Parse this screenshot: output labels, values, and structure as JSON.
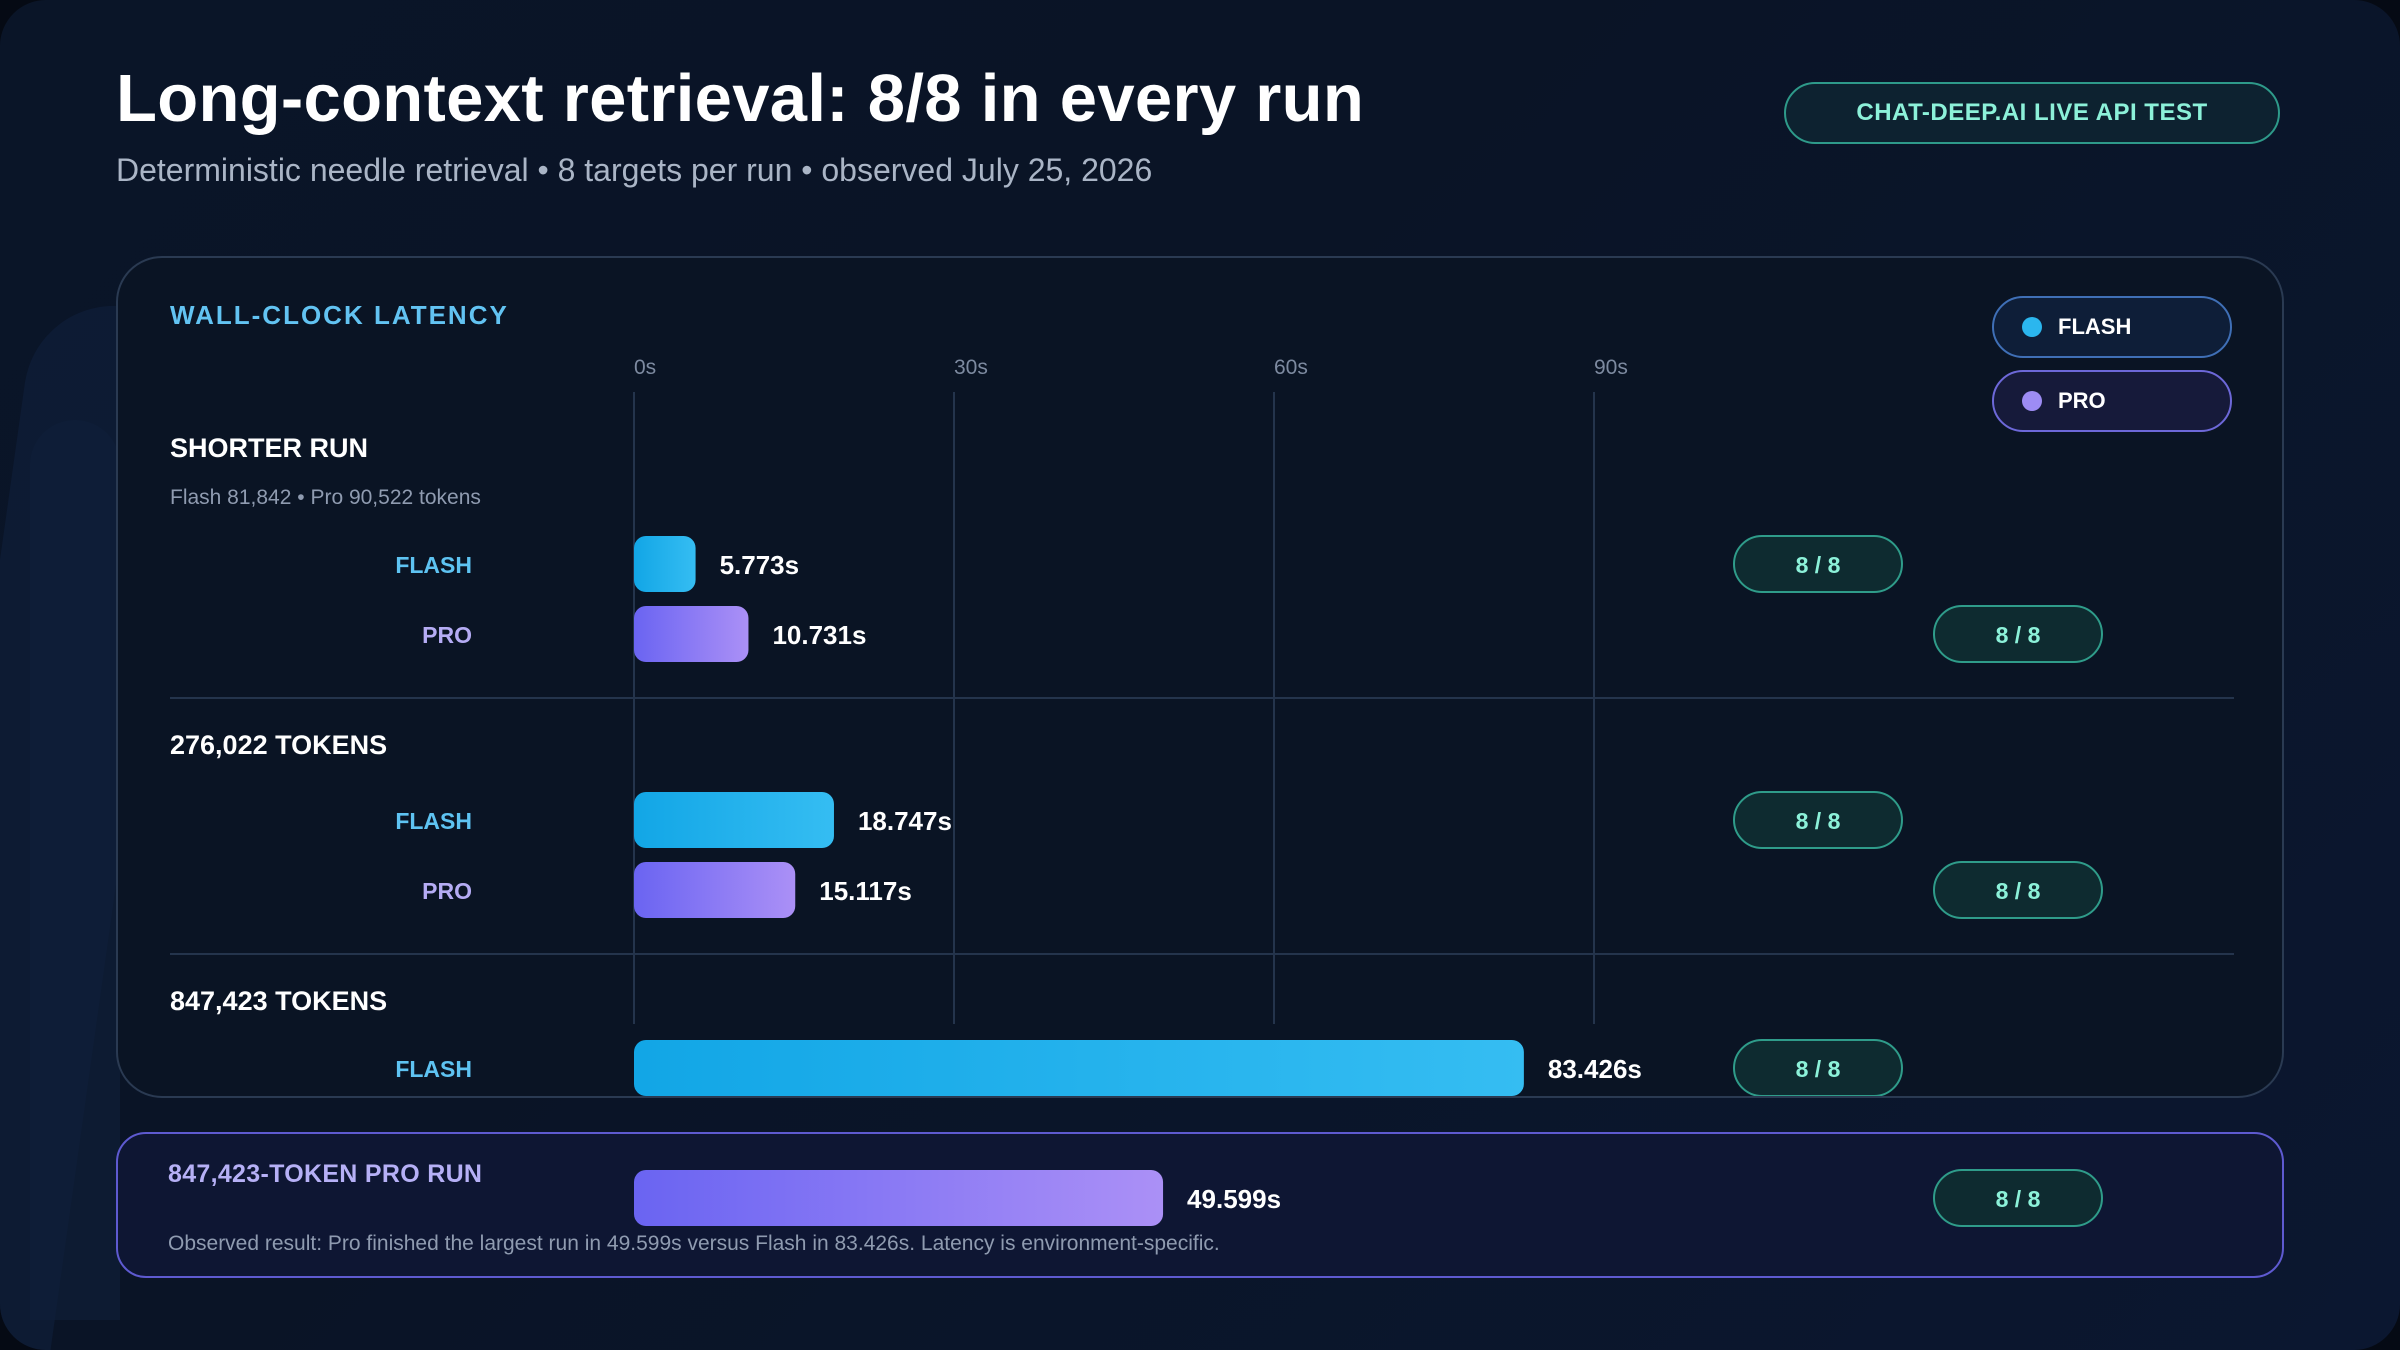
{
  "header": {
    "title": "Long-context retrieval: 8/8 in every run",
    "subtitle": "Deterministic needle retrieval • 8 targets per run • observed July 25, 2026",
    "badge": "CHAT-DEEP.AI LIVE API TEST"
  },
  "colors": {
    "flash": "#1fb0ec",
    "pro": "#8f7cf0",
    "accent_teal": "#8cf1d9"
  },
  "chart_data": {
    "type": "bar",
    "orientation": "horizontal",
    "section_label": "WALL-CLOCK LATENCY",
    "x_ticks": [
      "0s",
      "30s",
      "60s",
      "90s"
    ],
    "xlim": [
      0,
      120
    ],
    "legend": [
      {
        "name": "FLASH",
        "color": "#2bb6ee"
      },
      {
        "name": "PRO",
        "color": "#9d8cf4"
      }
    ],
    "legend_position": "top-right",
    "groups": [
      {
        "label": "SHORTER RUN",
        "sublabel": "Flash 81,842 • Pro 90,522 tokens",
        "bars": [
          {
            "series": "FLASH",
            "seconds": 5.773,
            "value_label": "5.773s",
            "score": "8 / 8"
          },
          {
            "series": "PRO",
            "seconds": 10.731,
            "value_label": "10.731s",
            "score": "8 / 8"
          }
        ]
      },
      {
        "label": "276,022 TOKENS",
        "sublabel": "",
        "bars": [
          {
            "series": "FLASH",
            "seconds": 18.747,
            "value_label": "18.747s",
            "score": "8 / 8"
          },
          {
            "series": "PRO",
            "seconds": 15.117,
            "value_label": "15.117s",
            "score": "8 / 8"
          }
        ]
      },
      {
        "label": "847,423 TOKENS",
        "sublabel": "",
        "bars": [
          {
            "series": "FLASH",
            "seconds": 83.426,
            "value_label": "83.426s",
            "score": "8 / 8"
          }
        ]
      }
    ],
    "summary": {
      "title": "847,423-TOKEN PRO RUN",
      "series": "PRO",
      "seconds": 49.599,
      "value_label": "49.599s",
      "score": "8 / 8",
      "note": "Observed result: Pro finished the largest run in 49.599s versus Flash in 83.426s. Latency is environment-specific."
    }
  }
}
